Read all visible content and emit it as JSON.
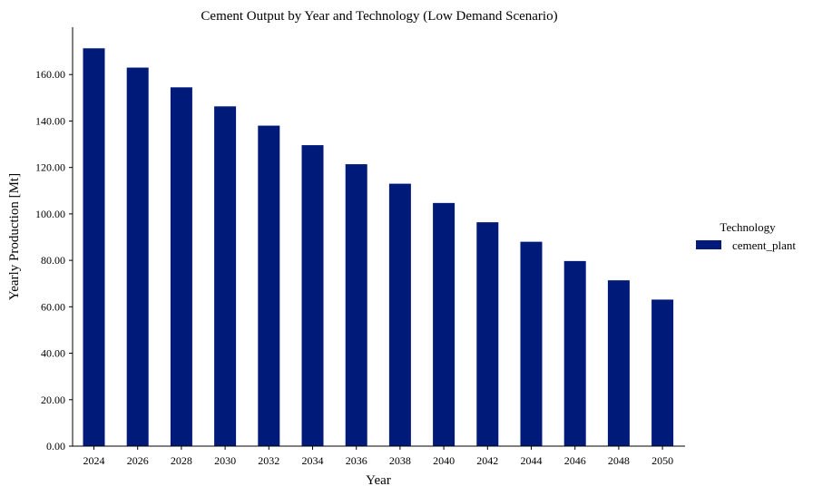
{
  "chart_data": {
    "type": "bar",
    "title": "Cement Output by Year and Technology (Low Demand Scenario)",
    "xlabel": "Year",
    "ylabel": "Yearly Production [Mt]",
    "categories": [
      "2024",
      "2026",
      "2028",
      "2030",
      "2032",
      "2034",
      "2036",
      "2038",
      "2040",
      "2042",
      "2044",
      "2046",
      "2048",
      "2050"
    ],
    "series": [
      {
        "name": "cement_plant",
        "color": "#001a7a",
        "values": [
          171.3,
          163.0,
          154.5,
          146.3,
          138.0,
          129.6,
          121.4,
          113.0,
          104.7,
          96.4,
          88.0,
          79.7,
          71.4,
          63.1
        ]
      }
    ],
    "ylim": [
      0,
      180
    ],
    "yticks": [
      0,
      20,
      40,
      60,
      80,
      100,
      120,
      140,
      160
    ],
    "ytick_labels": [
      "0.00",
      "20.00",
      "40.00",
      "60.00",
      "80.00",
      "100.00",
      "120.00",
      "140.00",
      "160.00"
    ],
    "grid": false,
    "legend": {
      "title": "Technology",
      "placement": "right"
    }
  }
}
